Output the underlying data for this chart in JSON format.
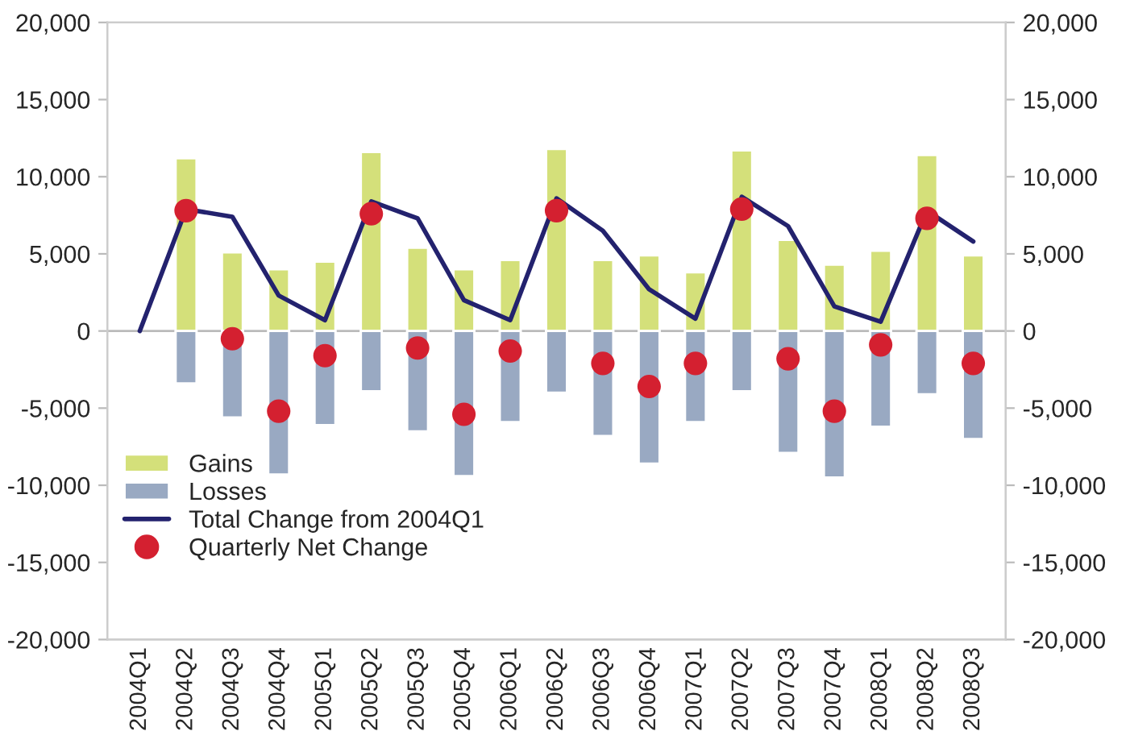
{
  "chart_data": {
    "type": "bar",
    "categories": [
      "2004Q1",
      "2004Q2",
      "2004Q3",
      "2004Q4",
      "2005Q1",
      "2005Q2",
      "2005Q3",
      "2005Q4",
      "2006Q1",
      "2006Q2",
      "2006Q3",
      "2006Q4",
      "2007Q1",
      "2007Q2",
      "2007Q3",
      "2007Q4",
      "2008Q1",
      "2008Q2",
      "2008Q3"
    ],
    "series": [
      {
        "name": "Gains",
        "color": "#d4e07a",
        "values": [
          null,
          11200,
          5100,
          4000,
          4500,
          11600,
          5400,
          4000,
          4600,
          11800,
          4600,
          4900,
          3800,
          11700,
          5900,
          4300,
          5200,
          11400,
          4900
        ]
      },
      {
        "name": "Losses",
        "color": "#99a9c2",
        "values": [
          null,
          -3400,
          -5600,
          -9300,
          -6100,
          -3900,
          -6500,
          -9400,
          -5900,
          -4000,
          -6800,
          -8600,
          -5900,
          -3900,
          -7900,
          -9500,
          -6200,
          -4100,
          -7000
        ]
      },
      {
        "name": "Total Change from 2004Q1",
        "type": "line",
        "color": "#23226e",
        "values": [
          0,
          7900,
          7400,
          2300,
          700,
          8400,
          7300,
          2000,
          700,
          8600,
          6500,
          2700,
          800,
          8700,
          6800,
          1600,
          600,
          7800,
          5800
        ]
      },
      {
        "name": "Quarterly Net Change",
        "type": "scatter",
        "marker": "circle",
        "color": "#d42030",
        "values": [
          null,
          7800,
          -500,
          -5200,
          -1600,
          7600,
          -1100,
          -5400,
          -1300,
          7800,
          -2100,
          -3600,
          -2100,
          7900,
          -1800,
          -5200,
          -900,
          7300,
          -2100
        ]
      }
    ],
    "ylim": [
      -20000,
      20000
    ],
    "yticks": [
      {
        "value": -20000,
        "label": "-20,000"
      },
      {
        "value": -15000,
        "label": "-15,000"
      },
      {
        "value": -10000,
        "label": "-10,000"
      },
      {
        "value": -5000,
        "label": "-5,000"
      },
      0,
      {
        "value": 5000,
        "label": "5,000"
      },
      {
        "value": 10000,
        "label": "10,000"
      },
      {
        "value": 15000,
        "label": "15,000"
      },
      {
        "value": 20000,
        "label": "20,000"
      }
    ],
    "y2lim": [
      -20000,
      20000
    ],
    "y2ticks": [
      {
        "value": -20000,
        "label": "-20,000"
      },
      {
        "value": -15000,
        "label": "-15,000"
      },
      {
        "value": -10000,
        "label": "-10,000"
      },
      {
        "value": -5000,
        "label": "-5,000"
      },
      0,
      {
        "value": 5000,
        "label": "5,000"
      },
      {
        "value": 10000,
        "label": "10,000"
      },
      {
        "value": 15000,
        "label": "15,000"
      },
      {
        "value": 20000,
        "label": "20,000"
      }
    ],
    "ref_lines": [
      {
        "axis": "y",
        "value": 0,
        "label": null,
        "color": "#bbbbbb"
      }
    ],
    "stacked": true,
    "legend": "bottom left",
    "grid": false
  }
}
